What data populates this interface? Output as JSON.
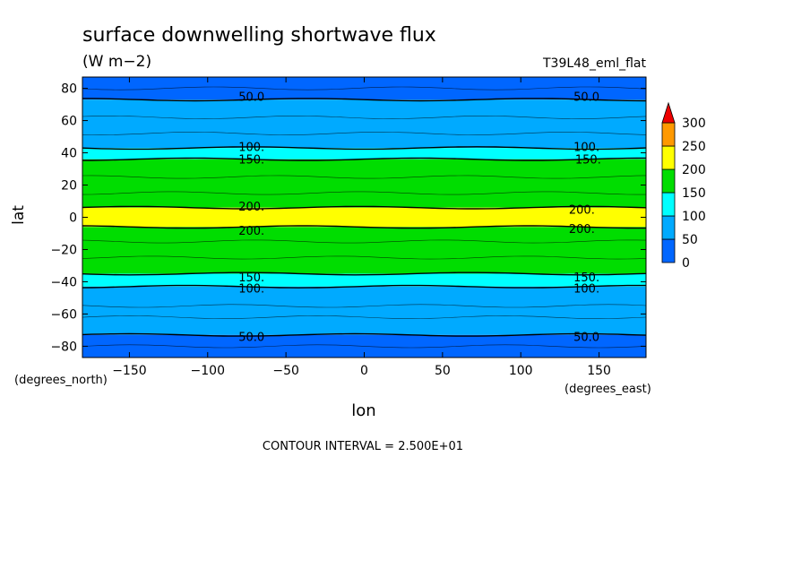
{
  "chart_data": {
    "type": "heatmap",
    "title": "surface downwelling shortwave flux",
    "units": "(W m−2)",
    "dataset_label": "T39L48_eml_flat",
    "xlabel": "lon",
    "ylabel": "lat",
    "x_units": "(degrees_east)",
    "y_units": "(degrees_north)",
    "xlim": [
      -180,
      180
    ],
    "ylim": [
      -87,
      87
    ],
    "x_ticks": [
      -150,
      -100,
      -50,
      0,
      50,
      100,
      150
    ],
    "x_tick_labels": [
      "−150",
      "−100",
      "−50",
      "0",
      "50",
      "100",
      "150"
    ],
    "y_ticks": [
      80,
      60,
      40,
      20,
      0,
      -20,
      -40,
      -60,
      -80
    ],
    "y_tick_labels": [
      "80",
      "60",
      "40",
      "20",
      "0",
      "−20",
      "−40",
      "−60",
      "−80"
    ],
    "footer": "CONTOUR INTERVAL = 2.500E+01",
    "colorbar": {
      "levels": [
        0,
        50,
        100,
        150,
        200,
        250,
        300
      ],
      "level_labels": [
        "0",
        "50",
        "100",
        "150",
        "200",
        "250",
        "300"
      ],
      "colors": [
        "#0066ff",
        "#00aaff",
        "#00ffff",
        "#00dd00",
        "#ffff00",
        "#ff9900"
      ],
      "overflow_color": "#ee0000"
    },
    "zonal_profile": [
      {
        "lat_range": [
          73,
          87
        ],
        "value_range": [
          0,
          50
        ],
        "color": "#0066ff"
      },
      {
        "lat_range": [
          43,
          73
        ],
        "value_range": [
          50,
          100
        ],
        "color": "#00aaff"
      },
      {
        "lat_range": [
          36,
          43
        ],
        "value_range": [
          100,
          150
        ],
        "color": "#00ffff"
      },
      {
        "lat_range": [
          6,
          36
        ],
        "value_range": [
          150,
          200
        ],
        "color": "#00dd00"
      },
      {
        "lat_range": [
          -6,
          6
        ],
        "value_range": [
          200,
          250
        ],
        "color": "#ffff00"
      },
      {
        "lat_range": [
          -35,
          -6
        ],
        "value_range": [
          150,
          200
        ],
        "color": "#00dd00"
      },
      {
        "lat_range": [
          -43,
          -35
        ],
        "value_range": [
          100,
          150
        ],
        "color": "#00ffff"
      },
      {
        "lat_range": [
          -73,
          -43
        ],
        "value_range": [
          50,
          100
        ],
        "color": "#00aaff"
      },
      {
        "lat_range": [
          -87,
          -73
        ],
        "value_range": [
          0,
          50
        ],
        "color": "#0066ff"
      }
    ],
    "contour_labels": [
      {
        "text": "50.0",
        "lon": -72,
        "lat": 75
      },
      {
        "text": "50.0",
        "lon": 142,
        "lat": 75
      },
      {
        "text": "100.",
        "lon": -72,
        "lat": 44
      },
      {
        "text": "150.",
        "lon": -72,
        "lat": 36
      },
      {
        "text": "100.",
        "lon": 142,
        "lat": 44
      },
      {
        "text": "150.",
        "lon": 143,
        "lat": 36
      },
      {
        "text": "200.",
        "lon": -72,
        "lat": 7
      },
      {
        "text": "200.",
        "lon": -72,
        "lat": -8
      },
      {
        "text": "200.",
        "lon": 139,
        "lat": 5
      },
      {
        "text": "200.",
        "lon": 139,
        "lat": -7
      },
      {
        "text": "150.",
        "lon": -72,
        "lat": -37
      },
      {
        "text": "100.",
        "lon": -72,
        "lat": -44
      },
      {
        "text": "150.",
        "lon": 142,
        "lat": -37
      },
      {
        "text": "100.",
        "lon": 142,
        "lat": -44
      },
      {
        "text": "50.0",
        "lon": -72,
        "lat": -74
      },
      {
        "text": "50.0",
        "lon": 142,
        "lat": -74
      }
    ]
  }
}
